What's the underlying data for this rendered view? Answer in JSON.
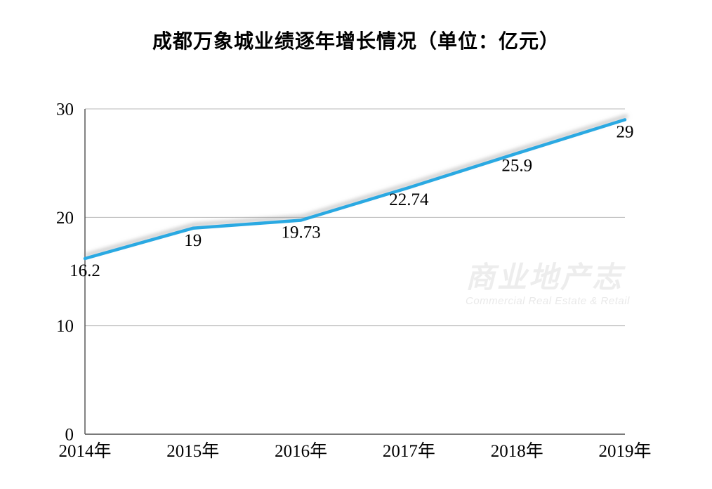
{
  "title": "成都万象城业绩逐年增长情况（单位：亿元）",
  "watermark": {
    "cn": "商业地产志",
    "en": "Commercial  Real Estate & Retail"
  },
  "chart_data": {
    "type": "line",
    "title": "成都万象城业绩逐年增长情况（单位：亿元）",
    "categories": [
      "2014年",
      "2015年",
      "2016年",
      "2017年",
      "2018年",
      "2019年"
    ],
    "values": [
      16.2,
      19,
      19.73,
      22.74,
      25.9,
      29
    ],
    "data_labels": [
      "16.2",
      "19",
      "19.73",
      "22.74",
      "25.9",
      "29"
    ],
    "xlabel": "",
    "ylabel": "",
    "ylim": [
      0,
      30
    ],
    "y_ticks": [
      0,
      10,
      20,
      30
    ],
    "grid": true,
    "legend": false,
    "colors": {
      "line": "#29A9E2",
      "shadow": "#8c8c8c",
      "grid": "#b9b9b9",
      "axis": "#4d4d4d",
      "label": "#000000"
    }
  }
}
